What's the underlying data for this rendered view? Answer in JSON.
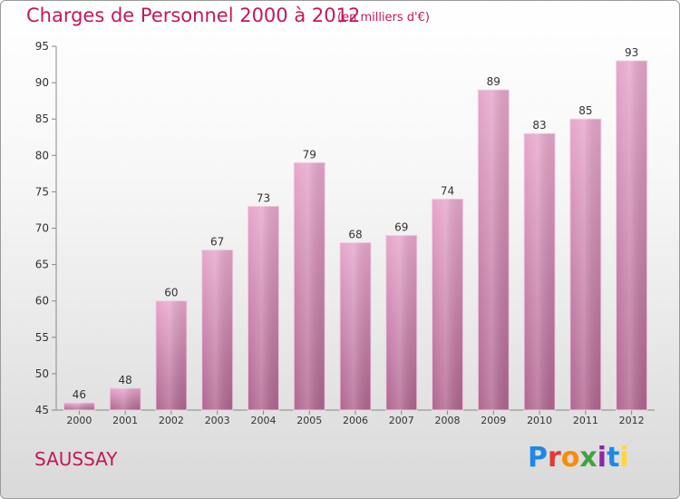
{
  "header": {
    "title": "Charges de Personnel 2000 à 2012",
    "unit_note": "(en milliers d'€)"
  },
  "footer": {
    "place": "SAUSSAY",
    "logo_letters": [
      "P",
      "r",
      "o",
      "x",
      "i",
      "t",
      "i"
    ],
    "logo_colors": [
      "#1e88e5",
      "#e53935",
      "#fb8c00",
      "#43a047",
      "#8e24aa",
      "#1e88e5",
      "#fdd835"
    ]
  },
  "colors": {
    "accent": "#c2185b",
    "bar_top": "#e6a6cb",
    "bar_bottom": "#b06690"
  },
  "chart_data": {
    "type": "bar",
    "title": "Charges de Personnel 2000 à 2012",
    "subtitle": "(en milliers d'€)",
    "categories": [
      "2000",
      "2001",
      "2002",
      "2003",
      "2004",
      "2005",
      "2006",
      "2007",
      "2008",
      "2009",
      "2010",
      "2011",
      "2012"
    ],
    "values": [
      46,
      48,
      60,
      67,
      73,
      79,
      68,
      69,
      74,
      89,
      83,
      85,
      93
    ],
    "ylim": [
      45,
      95
    ],
    "yticks": [
      45,
      50,
      55,
      60,
      65,
      70,
      75,
      80,
      85,
      90,
      95
    ],
    "grid": false,
    "data_labels": true
  }
}
